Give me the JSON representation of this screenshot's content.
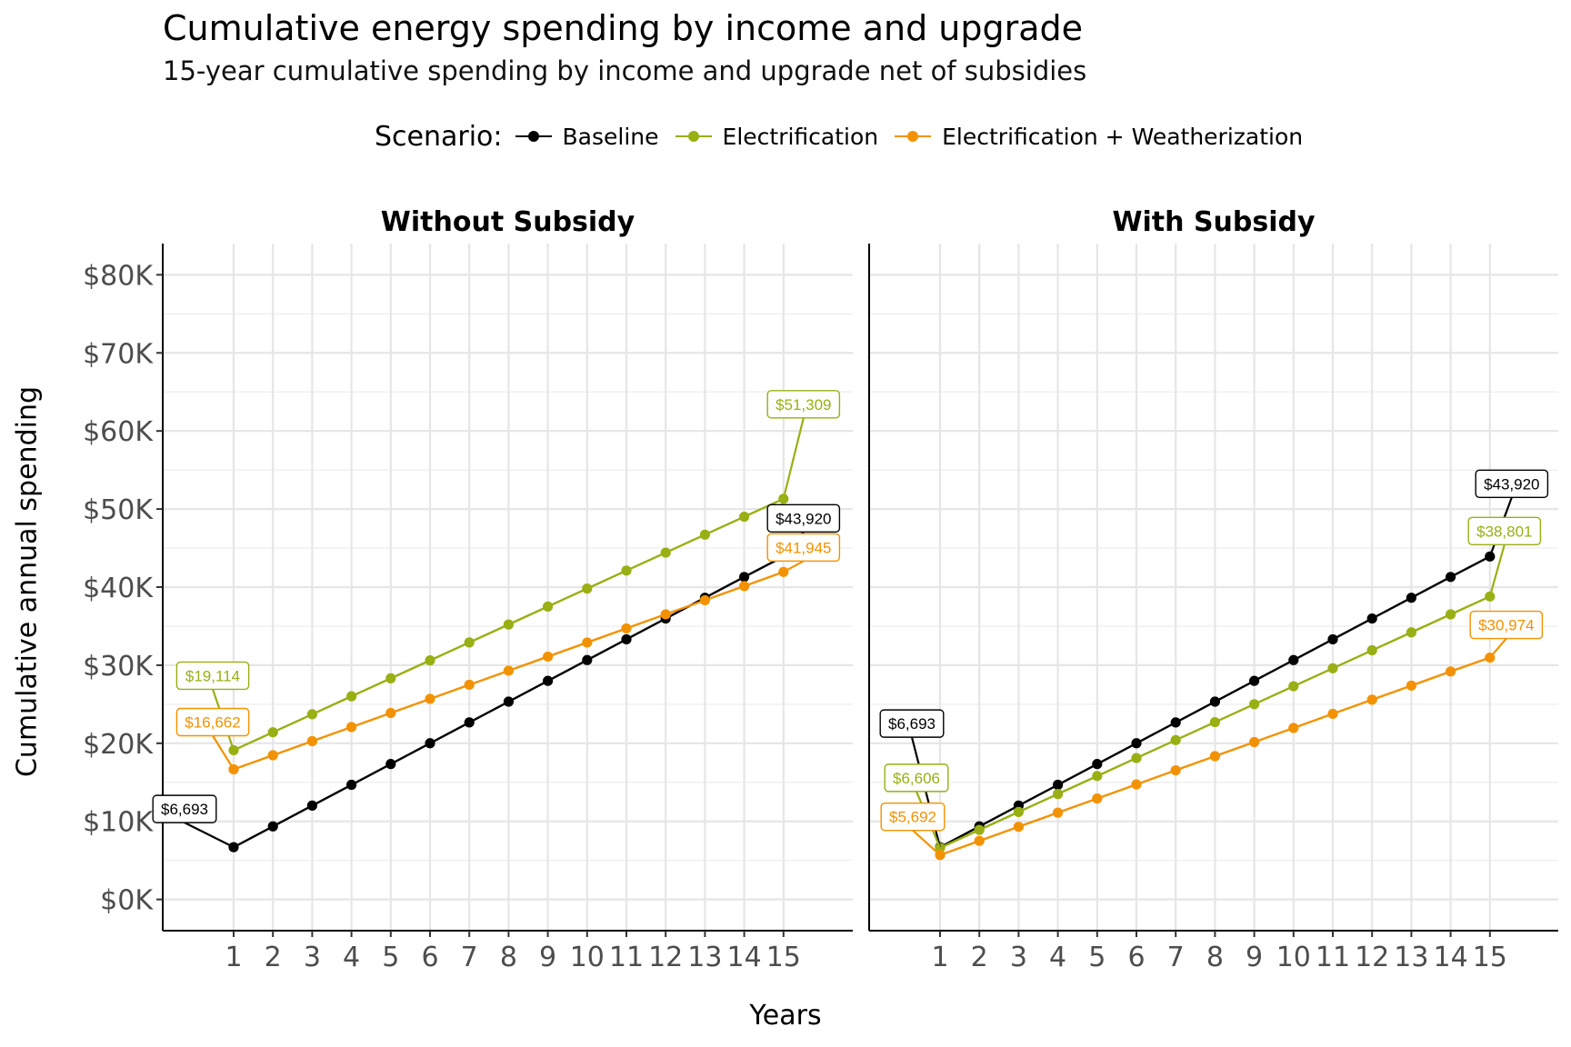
{
  "title": "Cumulative energy spending by income and upgrade",
  "subtitle": "15-year cumulative spending by income and upgrade net of subsidies",
  "legend": {
    "title": "Scenario:",
    "items": [
      {
        "label": "Baseline",
        "color": "#000000"
      },
      {
        "label": "Electrification",
        "color": "#9aaf14"
      },
      {
        "label": "Electrification + Weatherization",
        "color": "#f39200"
      }
    ]
  },
  "colors": {
    "baseline": "#000000",
    "electrification": "#9aaf14",
    "elec_weather": "#f39200"
  },
  "chart_data": {
    "type": "line",
    "xlabel": "Years",
    "ylabel": "Cumulative annual spending",
    "ylim": [
      -4000,
      84000
    ],
    "y_ticks": [
      0,
      10000,
      20000,
      30000,
      40000,
      50000,
      60000,
      70000,
      80000
    ],
    "y_tick_labels": [
      "$0K",
      "$10K",
      "$20K",
      "$30K",
      "$40K",
      "$50K",
      "$60K",
      "$70K",
      "$80K"
    ],
    "x": [
      1,
      2,
      3,
      4,
      5,
      6,
      7,
      8,
      9,
      10,
      11,
      12,
      13,
      14,
      15
    ],
    "x_tick_labels": [
      "1",
      "2",
      "3",
      "4",
      "5",
      "6",
      "7",
      "8",
      "9",
      "10",
      "11",
      "12",
      "13",
      "14",
      "15"
    ],
    "grid": true,
    "legend_position": "top",
    "panels": [
      {
        "title": "Without Subsidy",
        "series": [
          {
            "name": "Baseline",
            "values": [
              6693,
              9355,
              12018,
              14680,
              17342,
              20005,
              22667,
              25330,
              27992,
              30655,
              33317,
              35979,
              38642,
              41304,
              43920
            ]
          },
          {
            "name": "Electrification",
            "values": [
              19114,
              21414,
              23714,
              26014,
              28314,
              30614,
              32914,
              35214,
              37514,
              39814,
              42114,
              44414,
              46714,
              49014,
              51309
            ]
          },
          {
            "name": "Electrification + Weatherization",
            "values": [
              16662,
              18467,
              20272,
              22077,
              23882,
              25687,
              27492,
              29297,
              31102,
              32907,
              34712,
              36517,
              38322,
              40127,
              41945
            ]
          }
        ],
        "labels": [
          {
            "series": 0,
            "text": "$6,693"
          },
          {
            "series": 1,
            "text": "$19,114"
          },
          {
            "series": 2,
            "text": "$16,662"
          },
          {
            "series": 0,
            "text": "$43,920"
          },
          {
            "series": 1,
            "text": "$51,309"
          },
          {
            "series": 2,
            "text": "$41,945"
          }
        ]
      },
      {
        "title": "With Subsidy",
        "series": [
          {
            "name": "Baseline",
            "values": [
              6693,
              9355,
              12018,
              14680,
              17342,
              20005,
              22667,
              25330,
              27992,
              30655,
              33317,
              35979,
              38642,
              41304,
              43920
            ]
          },
          {
            "name": "Electrification",
            "values": [
              6606,
              8906,
              11206,
              13506,
              15806,
              18106,
              20406,
              22706,
              25006,
              27306,
              29606,
              31906,
              34206,
              36506,
              38801
            ]
          },
          {
            "name": "Electrification + Weatherization",
            "values": [
              5692,
              7500,
              9308,
              11116,
              12924,
              14732,
              16540,
              18348,
              20156,
              21964,
              23772,
              25580,
              27388,
              29196,
              30974
            ]
          }
        ],
        "labels": [
          {
            "series": 0,
            "text": "$6,693"
          },
          {
            "series": 1,
            "text": "$6,606"
          },
          {
            "series": 2,
            "text": "$5,692"
          },
          {
            "series": 0,
            "text": "$43,920"
          },
          {
            "series": 1,
            "text": "$38,801"
          },
          {
            "series": 2,
            "text": "$30,974"
          }
        ]
      }
    ]
  }
}
